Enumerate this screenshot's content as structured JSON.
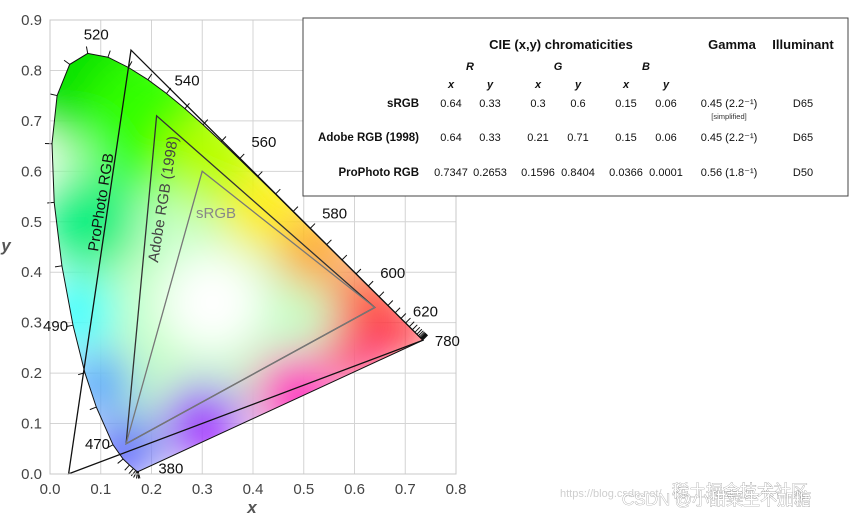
{
  "chart_data": {
    "type": "scatter",
    "title": "",
    "xlabel": "x",
    "ylabel": "y",
    "xlim": [
      0,
      0.8
    ],
    "ylim": [
      0,
      0.9
    ],
    "x_ticks": [
      "0.0",
      "0.1",
      "0.2",
      "0.3",
      "0.4",
      "0.5",
      "0.6",
      "0.7",
      "0.8"
    ],
    "y_ticks": [
      "0.0",
      "0.1",
      "0.2",
      "0.3",
      "0.4",
      "0.5",
      "0.6",
      "0.7",
      "0.8",
      "0.9"
    ],
    "spectral_locus": [
      [
        0.1741,
        0.005
      ],
      [
        0.1738,
        0.0049
      ],
      [
        0.1733,
        0.0048
      ],
      [
        0.1726,
        0.0048
      ],
      [
        0.1714,
        0.0051
      ],
      [
        0.1689,
        0.0069
      ],
      [
        0.1644,
        0.0109
      ],
      [
        0.1566,
        0.0177
      ],
      [
        0.144,
        0.0297
      ],
      [
        0.1241,
        0.0578
      ],
      [
        0.0913,
        0.1327
      ],
      [
        0.0687,
        0.2007
      ],
      [
        0.0454,
        0.295
      ],
      [
        0.0235,
        0.4127
      ],
      [
        0.0082,
        0.5384
      ],
      [
        0.0039,
        0.6548
      ],
      [
        0.0139,
        0.7502
      ],
      [
        0.0389,
        0.812
      ],
      [
        0.0743,
        0.8338
      ],
      [
        0.1142,
        0.8262
      ],
      [
        0.1547,
        0.8059
      ],
      [
        0.1929,
        0.7816
      ],
      [
        0.2296,
        0.7543
      ],
      [
        0.2658,
        0.7243
      ],
      [
        0.3016,
        0.6923
      ],
      [
        0.3373,
        0.6589
      ],
      [
        0.3731,
        0.6245
      ],
      [
        0.4087,
        0.5896
      ],
      [
        0.4441,
        0.5547
      ],
      [
        0.4788,
        0.5202
      ],
      [
        0.5125,
        0.4866
      ],
      [
        0.5448,
        0.4544
      ],
      [
        0.5752,
        0.4242
      ],
      [
        0.6029,
        0.3965
      ],
      [
        0.627,
        0.3725
      ],
      [
        0.6482,
        0.3514
      ],
      [
        0.6658,
        0.334
      ],
      [
        0.6801,
        0.3197
      ],
      [
        0.6915,
        0.3083
      ],
      [
        0.7006,
        0.2993
      ],
      [
        0.7079,
        0.292
      ],
      [
        0.714,
        0.2859
      ],
      [
        0.719,
        0.2809
      ],
      [
        0.723,
        0.277
      ],
      [
        0.726,
        0.274
      ],
      [
        0.7283,
        0.2717
      ],
      [
        0.73,
        0.27
      ],
      [
        0.7311,
        0.2689
      ],
      [
        0.732,
        0.268
      ],
      [
        0.7327,
        0.2673
      ],
      [
        0.7334,
        0.2666
      ],
      [
        0.734,
        0.266
      ],
      [
        0.7344,
        0.2656
      ],
      [
        0.7347,
        0.2653
      ]
    ],
    "wavelength_labels": [
      {
        "text": "380",
        "x": 0.1741,
        "y": 0.005
      },
      {
        "text": "470",
        "x": 0.1241,
        "y": 0.0578
      },
      {
        "text": "490",
        "x": 0.0454,
        "y": 0.295
      },
      {
        "text": "520",
        "x": 0.0743,
        "y": 0.8338
      },
      {
        "text": "540",
        "x": 0.2296,
        "y": 0.7543
      },
      {
        "text": "560",
        "x": 0.3731,
        "y": 0.6245
      },
      {
        "text": "580",
        "x": 0.5125,
        "y": 0.4866
      },
      {
        "text": "600",
        "x": 0.627,
        "y": 0.3725
      },
      {
        "text": "620",
        "x": 0.6915,
        "y": 0.3083
      },
      {
        "text": "780",
        "x": 0.7347,
        "y": 0.2653
      }
    ],
    "series": [
      {
        "name": "ProPhoto RGB",
        "points": [
          [
            0.7347,
            0.2653
          ],
          [
            0.1596,
            0.8404
          ],
          [
            0.0366,
            0.0001
          ]
        ],
        "color": "#111111"
      },
      {
        "name": "Adobe RGB (1998)",
        "points": [
          [
            0.64,
            0.33
          ],
          [
            0.21,
            0.71
          ],
          [
            0.15,
            0.06
          ]
        ],
        "color": "#333333"
      },
      {
        "name": "sRGB",
        "points": [
          [
            0.64,
            0.33
          ],
          [
            0.3,
            0.6
          ],
          [
            0.15,
            0.06
          ]
        ],
        "color": "#777777"
      }
    ]
  },
  "table": {
    "header_chroma": "CIE (x,y) chromaticities",
    "header_gamma": "Gamma",
    "header_illuminant": "Illuminant",
    "sub_r": "R",
    "sub_g": "G",
    "sub_b": "B",
    "sub_x": "x",
    "sub_y": "y",
    "rows": [
      {
        "name": "sRGB",
        "rx": "0.64",
        "ry": "0.33",
        "gx": "0.3",
        "gy": "0.6",
        "bx": "0.15",
        "by": "0.06",
        "gamma": "0.45 (2.2⁻¹)",
        "note": "[simplified]",
        "illuminant": "D65"
      },
      {
        "name": "Adobe RGB (1998)",
        "rx": "0.64",
        "ry": "0.33",
        "gx": "0.21",
        "gy": "0.71",
        "bx": "0.15",
        "by": "0.06",
        "gamma": "0.45 (2.2⁻¹)",
        "note": "",
        "illuminant": "D65"
      },
      {
        "name": "ProPhoto RGB",
        "rx": "0.7347",
        "ry": "0.2653",
        "gx": "0.1596",
        "gy": "0.8404",
        "bx": "0.0366",
        "by": "0.0001",
        "gamma": "0.56 (1.8⁻¹)",
        "note": "",
        "illuminant": "D50"
      }
    ]
  },
  "watermark": {
    "text": "CSDN @小甜菜生不加糖",
    "text2": "稀土掘金技术社区",
    "text3": "https://blog.csdn.net/"
  }
}
